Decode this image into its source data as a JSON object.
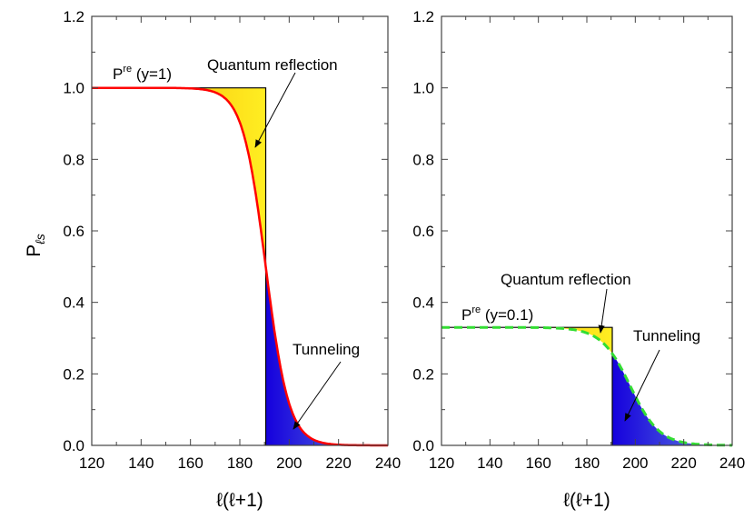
{
  "chart_data": [
    {
      "type": "area",
      "panel": "left",
      "xlabel": "ℓ(ℓ+1)",
      "ylabel_main": "P",
      "ylabel_sub": "ℓs",
      "xlim": [
        120,
        240
      ],
      "ylim": [
        0,
        1.2
      ],
      "xticks": [
        "120",
        "140",
        "160",
        "180",
        "200",
        "220",
        "240"
      ],
      "yticks": [
        "0.0",
        "0.2",
        "0.4",
        "0.6",
        "0.8",
        "1.0",
        "1.2"
      ],
      "step_x": 190.5,
      "step_height": 1.0,
      "curve": {
        "name": "Pre (y=1)",
        "model": "fermi",
        "amplitude": 1.0,
        "center": 190.5,
        "width": 4.7,
        "color": "#ff0000",
        "style": "solid"
      },
      "annotations": {
        "curve_label_main": "P",
        "curve_label_sup": "re",
        "curve_label_rest": " (y=1)",
        "reflection": "Quantum reflection",
        "tunneling": "Tunneling"
      }
    },
    {
      "type": "area",
      "panel": "right",
      "xlabel": "ℓ(ℓ+1)",
      "xlim": [
        120,
        240
      ],
      "ylim": [
        0,
        1.2
      ],
      "xticks": [
        "120",
        "140",
        "160",
        "180",
        "200",
        "220",
        "240"
      ],
      "yticks": [
        "0.0",
        "0.2",
        "0.4",
        "0.6",
        "0.8",
        "1.0",
        "1.2"
      ],
      "step_x": 190.5,
      "step_height": 0.33,
      "curve": {
        "name": "Pre (y=0.1)",
        "model": "fermi",
        "amplitude": 0.33,
        "center": 198,
        "width": 6,
        "color": "#33dd33",
        "style": "dashed"
      },
      "annotations": {
        "curve_label_main": "P",
        "curve_label_sup": "re",
        "curve_label_rest": " (y=0.1)",
        "reflection": "Quantum reflection",
        "tunneling": "Tunneling"
      }
    }
  ],
  "colors": {
    "reflection_dark": "#f5a800",
    "reflection_light": "#ffee22",
    "tunnel_dark": "#1500dd",
    "tunnel_light": "#5577dd"
  }
}
